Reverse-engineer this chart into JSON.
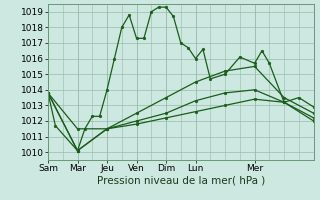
{
  "xlabel": "Pression niveau de la mer( hPa )",
  "background_color": "#cce8e0",
  "grid_color_major": "#99bbaa",
  "grid_color_minor": "#bbddcc",
  "line_color": "#1a5c1a",
  "ylim": [
    1009.5,
    1019.5
  ],
  "yticks": [
    1010,
    1011,
    1012,
    1013,
    1014,
    1015,
    1016,
    1017,
    1018,
    1019
  ],
  "x_ticks_labels": [
    "Sam",
    "Mar",
    "Jeu",
    "Ven",
    "Dim",
    "Lun",
    "Mer"
  ],
  "x_ticks_pos": [
    0,
    2,
    4,
    6,
    8,
    10,
    14
  ],
  "xlim": [
    0,
    18
  ],
  "series": [
    {
      "x": [
        0,
        0.5,
        2,
        2.5,
        3,
        3.5,
        4,
        4.5,
        5,
        5.5,
        6,
        6.5,
        7,
        7.5,
        8,
        8.5,
        9,
        9.5,
        10,
        10.5,
        11,
        12,
        13,
        14,
        14.5,
        15,
        16,
        17,
        18
      ],
      "y": [
        1013.8,
        1011.7,
        1010.1,
        1011.5,
        1012.3,
        1012.3,
        1014.0,
        1016.0,
        1018.0,
        1018.8,
        1017.3,
        1017.3,
        1019.0,
        1019.3,
        1019.3,
        1018.7,
        1017.0,
        1016.7,
        1016.0,
        1016.6,
        1014.7,
        1015.0,
        1016.1,
        1015.7,
        1016.5,
        1015.7,
        1013.2,
        1013.5,
        1012.9
      ]
    },
    {
      "x": [
        0,
        2,
        4,
        6,
        8,
        10,
        12,
        14,
        16,
        18
      ],
      "y": [
        1013.8,
        1011.5,
        1011.5,
        1012.5,
        1013.5,
        1014.5,
        1015.2,
        1015.5,
        1013.5,
        1012.5
      ]
    },
    {
      "x": [
        0,
        2,
        4,
        6,
        8,
        10,
        12,
        14,
        16,
        18
      ],
      "y": [
        1013.8,
        1010.1,
        1011.5,
        1012.0,
        1012.5,
        1013.3,
        1013.8,
        1014.0,
        1013.2,
        1012.2
      ]
    },
    {
      "x": [
        0,
        2,
        4,
        6,
        8,
        10,
        12,
        14,
        16,
        18
      ],
      "y": [
        1013.8,
        1010.1,
        1011.5,
        1011.8,
        1012.2,
        1012.6,
        1013.0,
        1013.4,
        1013.2,
        1012.0
      ]
    }
  ],
  "marker": "o",
  "markersize": 2.0,
  "linewidth": 0.9,
  "xlabel_fontsize": 7.5,
  "tick_fontsize": 6.5
}
